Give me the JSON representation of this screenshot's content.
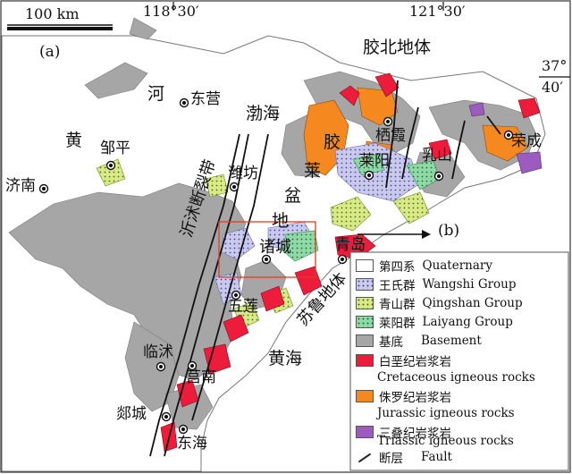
{
  "scale_bar": {
    "label": "100 km"
  },
  "coordinates": {
    "lon_left": "118°30′",
    "lon_right": "121°30′",
    "lat_deg": "37°",
    "lat_min": "40′"
  },
  "panel_label": "(a)",
  "callout_label": "(b)",
  "place_labels": {
    "jiaobei_terrane": "胶北地体",
    "sulu_terrane": "苏鲁地体",
    "bohai": "渤海",
    "huanghai": "黄海",
    "huanghe_huang": "黄",
    "huanghe_he": "河",
    "jiaolai_jiao": "胶",
    "jiaolai_lai": "莱",
    "jiaolai_pen": "盆",
    "jiaolai_di": "地",
    "fault_zone": "沂沭断裂带"
  },
  "cities": {
    "dongying": "东营",
    "zouping": "邹平",
    "jinan": "济南",
    "weifang": "潍坊",
    "zhucheng": "诸城",
    "qingdao": "青岛",
    "wulian": "五莲",
    "junan": "莒南",
    "linshu": "临沭",
    "tancheng": "郯城",
    "donghai": "东海",
    "qixia": "栖霞",
    "laiyang": "莱阳",
    "rushan": "乳山",
    "rongcheng": "荣成"
  },
  "legend": [
    {
      "cn": "第四系",
      "en": "Quaternary",
      "color": "#ffffff",
      "pattern": "none"
    },
    {
      "cn": "王氏群",
      "en": "Wangshi Group",
      "color": "#c9c9ee",
      "pattern": "dots"
    },
    {
      "cn": "青山群",
      "en": "Qingshan Group",
      "color": "#d8ea86",
      "pattern": "dots"
    },
    {
      "cn": "莱阳群",
      "en": "Laiyang Group",
      "color": "#8fd9a6",
      "pattern": "dots"
    },
    {
      "cn": "基底",
      "en": "Basement",
      "color": "#a6a6a6",
      "pattern": "none"
    },
    {
      "cn": "白垩纪岩浆岩",
      "en": "Cretaceous igneous rocks",
      "color": "#ee1c3b",
      "pattern": "none"
    },
    {
      "cn": "侏罗纪岩浆岩",
      "en": "Jurassic igneous rocks",
      "color": "#f5891f",
      "pattern": "none"
    },
    {
      "cn": "三叠纪岩浆岩",
      "en": "Triassic igneous rocks",
      "color": "#9c5bbf",
      "pattern": "none"
    },
    {
      "cn": "断层",
      "en": "Fault",
      "color": "#222222",
      "pattern": "line"
    }
  ]
}
